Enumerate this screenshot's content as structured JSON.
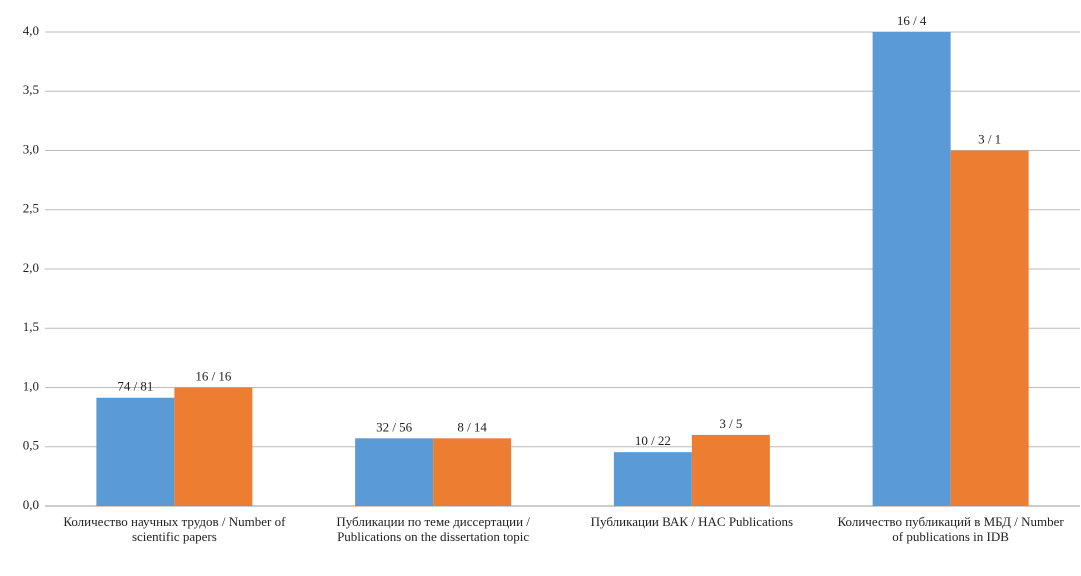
{
  "chart_data": {
    "type": "bar",
    "categories": [
      "Количество научных трудов / Number of scientific papers",
      "Публикации по теме диссертации / Publications on the dissertation topic",
      "Публикации ВАК / HAC Publications",
      "Количество публикаций в МБД / Number of publications in IDB"
    ],
    "series": [
      {
        "color": "#5b9bd5",
        "values": [
          0.9136,
          0.5714,
          0.4545,
          4
        ],
        "value_labels": [
          "74 / 81",
          "32 / 56",
          "10 / 22",
          "16 / 4"
        ]
      },
      {
        "color": "#ed7d31",
        "values": [
          1,
          0.5714,
          0.6,
          3
        ],
        "value_labels": [
          "16 / 16",
          "8 / 14",
          "3 / 5",
          "3 / 1"
        ]
      }
    ],
    "ylim": [
      0,
      4
    ],
    "yticks": [
      {
        "value": 0,
        "label": "0,0"
      },
      {
        "value": 0.5,
        "label": "0,5"
      },
      {
        "value": 1,
        "label": "1,0"
      },
      {
        "value": 1.5,
        "label": "1,5"
      },
      {
        "value": 2,
        "label": "2,0"
      },
      {
        "value": 2.5,
        "label": "2,5"
      },
      {
        "value": 3,
        "label": "3,0"
      },
      {
        "value": 3.5,
        "label": "3,5"
      },
      {
        "value": 4,
        "label": "4,0"
      }
    ],
    "grid": true
  }
}
